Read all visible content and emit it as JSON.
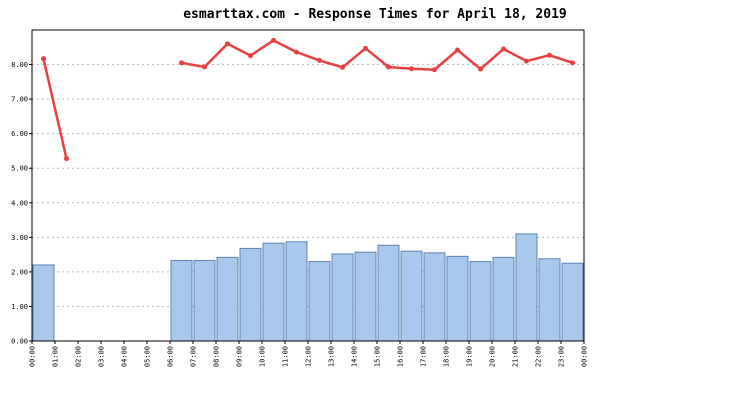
{
  "chart_data": {
    "type": "combo",
    "title": "esmarttax.com - Response Times for April 18, 2019",
    "x": [
      0,
      1,
      2,
      3,
      4,
      5,
      6,
      7,
      8,
      9,
      10,
      11,
      12,
      13,
      14,
      15,
      16,
      17,
      18,
      19,
      20,
      21,
      22,
      23
    ],
    "xlim": [
      0,
      24
    ],
    "xticks": [
      {
        "value": 0,
        "label": "00:00"
      },
      {
        "value": 1,
        "label": "01:00"
      },
      {
        "value": 2,
        "label": "02:00"
      },
      {
        "value": 3,
        "label": "03:00"
      },
      {
        "value": 4,
        "label": "04:00"
      },
      {
        "value": 5,
        "label": "05:00"
      },
      {
        "value": 6,
        "label": "06:00"
      },
      {
        "value": 7,
        "label": "07:00"
      },
      {
        "value": 8,
        "label": "08:00"
      },
      {
        "value": 9,
        "label": "09:00"
      },
      {
        "value": 10,
        "label": "10:00"
      },
      {
        "value": 11,
        "label": "11:00"
      },
      {
        "value": 12,
        "label": "12:00"
      },
      {
        "value": 13,
        "label": "13:00"
      },
      {
        "value": 14,
        "label": "14:00"
      },
      {
        "value": 15,
        "label": "15:00"
      },
      {
        "value": 16,
        "label": "16:00"
      },
      {
        "value": 17,
        "label": "17:00"
      },
      {
        "value": 18,
        "label": "18:00"
      },
      {
        "value": 19,
        "label": "19:00"
      },
      {
        "value": 20,
        "label": "20:00"
      },
      {
        "value": 21,
        "label": "21:00"
      },
      {
        "value": 22,
        "label": "22:00"
      },
      {
        "value": 23,
        "label": "23:00"
      },
      {
        "value": 24,
        "label": "00:00"
      }
    ],
    "ylim": [
      0,
      9
    ],
    "yticks": [
      {
        "value": 0,
        "label": "0.00"
      },
      {
        "value": 1,
        "label": "1.00"
      },
      {
        "value": 2,
        "label": "2.00"
      },
      {
        "value": 3,
        "label": "3.00"
      },
      {
        "value": 4,
        "label": "4.00"
      },
      {
        "value": 5,
        "label": "5.00"
      },
      {
        "value": 6,
        "label": "6.00"
      },
      {
        "value": 7,
        "label": "7.00"
      },
      {
        "value": 8,
        "label": "8.00"
      }
    ],
    "grid": true,
    "series": [
      {
        "type": "bar",
        "color": "#a8c8ec",
        "edge_color": "#5b84b0",
        "values": [
          2.2,
          null,
          null,
          null,
          null,
          null,
          2.33,
          2.33,
          2.42,
          2.68,
          2.83,
          2.87,
          2.3,
          2.52,
          2.57,
          2.77,
          2.6,
          2.55,
          2.45,
          2.3,
          2.42,
          3.1,
          2.38,
          2.25
        ]
      },
      {
        "type": "line",
        "color": "#e8403f",
        "values": [
          8.17,
          5.28,
          null,
          null,
          null,
          null,
          8.05,
          7.93,
          8.6,
          8.26,
          8.7,
          8.36,
          8.12,
          7.92,
          8.47,
          7.93,
          7.88,
          7.85,
          8.42,
          7.87,
          8.45,
          8.1,
          8.27,
          8.05
        ]
      }
    ]
  }
}
